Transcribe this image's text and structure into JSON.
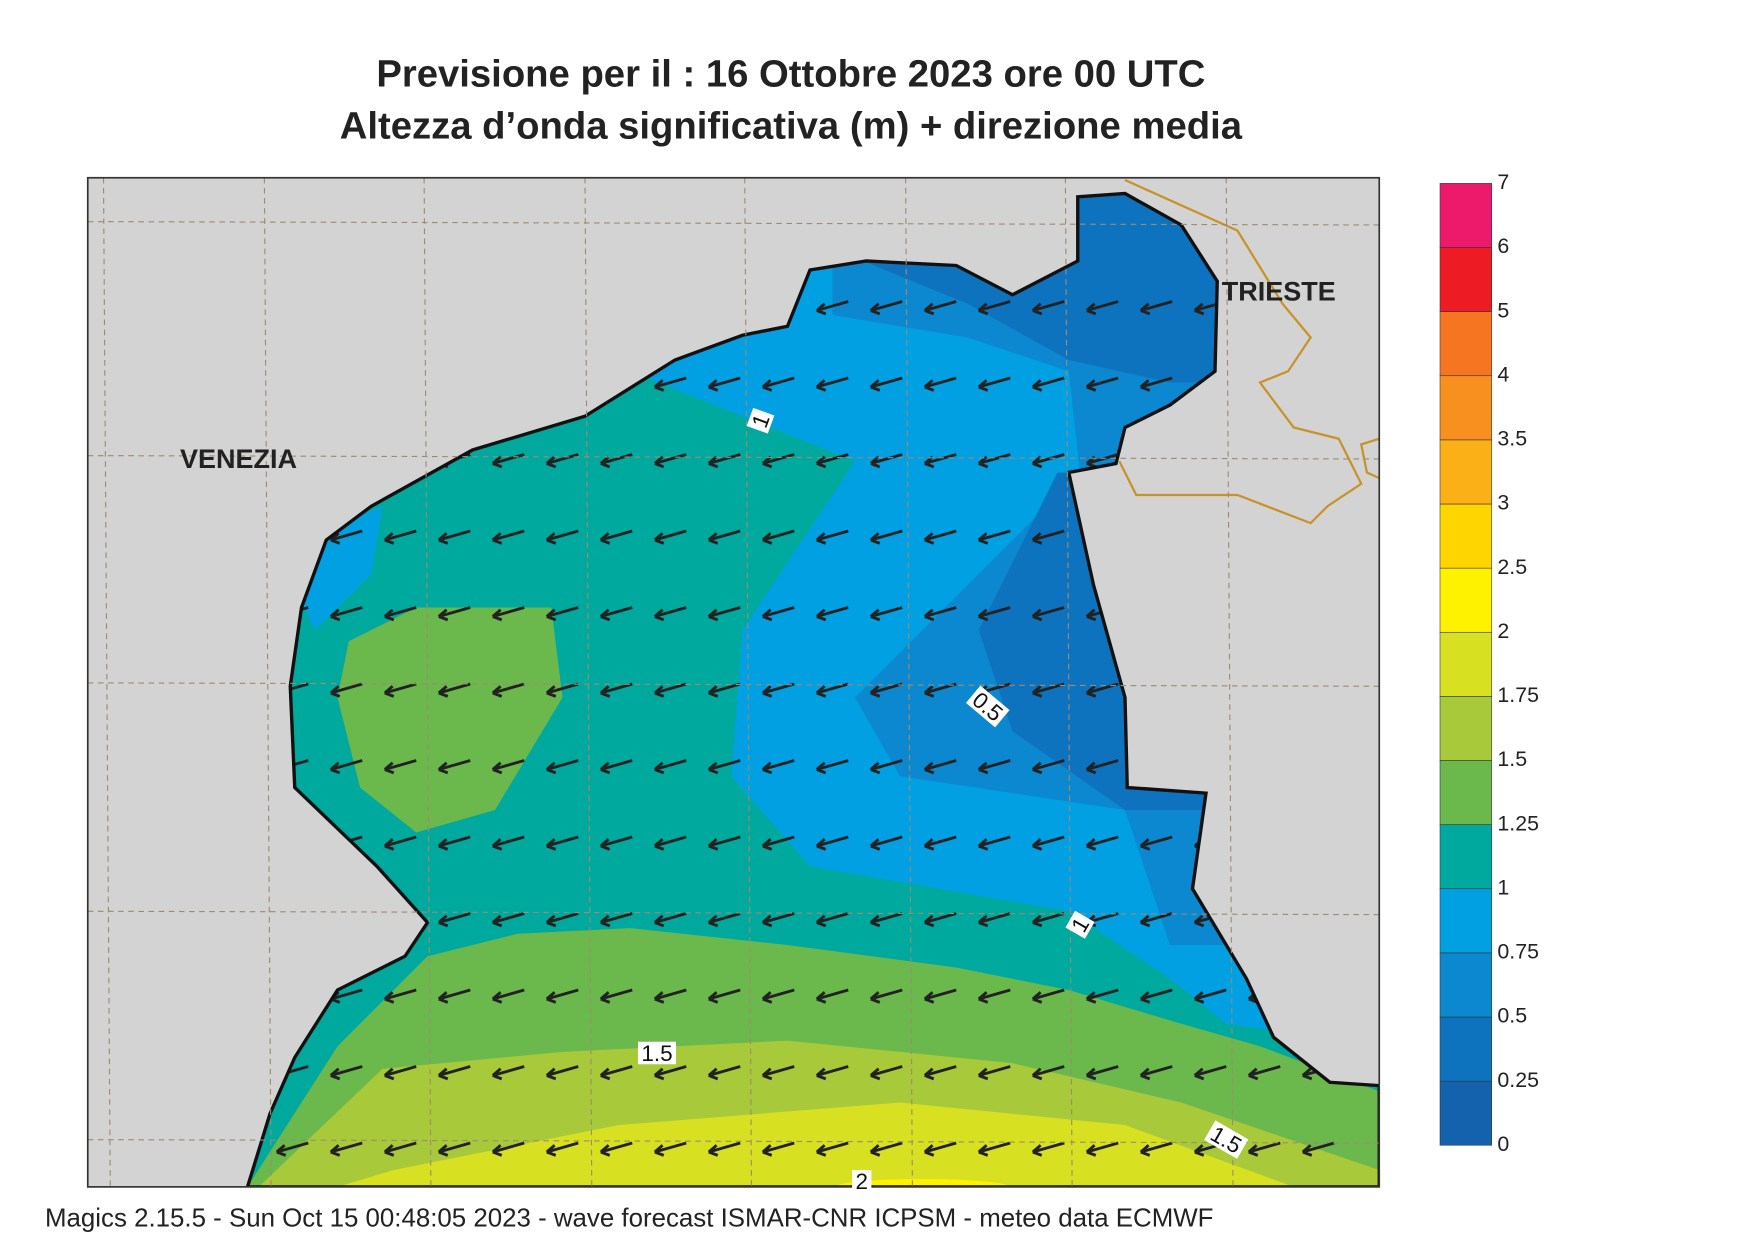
{
  "header": {
    "title": "Previsione per il  :  16  Ottobre  2023   ore 00 UTC",
    "subtitle": "Altezza d’onda significativa (m) + direzione media"
  },
  "places": [
    "VENEZIA",
    "TRIESTE"
  ],
  "contour_labels": [
    "1",
    "0.5",
    "1",
    "1.5",
    "1.5",
    "2"
  ],
  "colorbar": {
    "levels": [
      0,
      0.25,
      0.5,
      0.75,
      1,
      1.25,
      1.5,
      1.75,
      2,
      2.5,
      3,
      3.5,
      4,
      5,
      6,
      7
    ],
    "colors": [
      "#1461ad",
      "#0e73be",
      "#0b88d0",
      "#00a0e3",
      "#00a99d",
      "#6bb84d",
      "#a8c93a",
      "#d7e021",
      "#fff200",
      "#ffd500",
      "#fbb017",
      "#f7901e",
      "#f57520",
      "#ed1c24",
      "#ed1a6c"
    ]
  },
  "footer": "Magics 2.15.5 - Sun Oct 15 00:48:05 2023 - wave forecast  ISMAR-CNR  ICPSM - meteo data    ECMWF"
}
